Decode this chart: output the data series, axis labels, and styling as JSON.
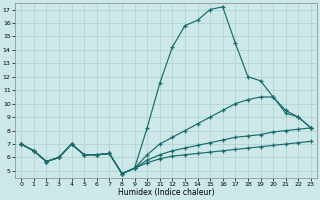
{
  "title": "",
  "xlabel": "Humidex (Indice chaleur)",
  "bg_color": "#cce8e8",
  "grid_color": "#aacfcf",
  "line_color": "#1a6b6b",
  "xlim": [
    -0.5,
    23.5
  ],
  "ylim": [
    4.5,
    17.5
  ],
  "xticks": [
    0,
    1,
    2,
    3,
    4,
    5,
    6,
    7,
    8,
    9,
    10,
    11,
    12,
    13,
    14,
    15,
    16,
    17,
    18,
    19,
    20,
    21,
    22,
    23
  ],
  "yticks": [
    5,
    6,
    7,
    8,
    9,
    10,
    11,
    12,
    13,
    14,
    15,
    16,
    17
  ],
  "s1_x": [
    0,
    1,
    2,
    3,
    4,
    5,
    6,
    7,
    8,
    9,
    10,
    11,
    12,
    13,
    14,
    15,
    16,
    17,
    18,
    19,
    20,
    21,
    22,
    23
  ],
  "s1_y": [
    7.0,
    6.5,
    5.7,
    6.0,
    7.0,
    6.2,
    6.2,
    6.3,
    4.8,
    5.2,
    8.2,
    11.5,
    14.2,
    15.8,
    16.2,
    17.0,
    17.2,
    14.5,
    12.0,
    11.7,
    10.5,
    9.3,
    9.0,
    8.2
  ],
  "s2_x": [
    0,
    1,
    2,
    3,
    4,
    5,
    6,
    7,
    8,
    9,
    10,
    11,
    12,
    13,
    14,
    15,
    16,
    17,
    18,
    19,
    20,
    21,
    22,
    23
  ],
  "s2_y": [
    7.0,
    6.5,
    5.7,
    6.0,
    7.0,
    6.2,
    6.2,
    6.3,
    4.8,
    5.2,
    5.8,
    6.2,
    6.5,
    6.7,
    6.9,
    7.1,
    7.3,
    7.5,
    7.6,
    7.7,
    7.9,
    8.0,
    8.1,
    8.2
  ],
  "s3_x": [
    0,
    1,
    2,
    3,
    4,
    5,
    6,
    7,
    8,
    9,
    10,
    11,
    12,
    13,
    14,
    15,
    16,
    17,
    18,
    19,
    20,
    21,
    22,
    23
  ],
  "s3_y": [
    7.0,
    6.5,
    5.7,
    6.0,
    7.0,
    6.2,
    6.2,
    6.3,
    4.8,
    5.2,
    6.2,
    7.0,
    7.5,
    8.0,
    8.5,
    9.0,
    9.5,
    10.0,
    10.3,
    10.5,
    10.5,
    9.5,
    9.0,
    8.2
  ],
  "s4_x": [
    0,
    1,
    2,
    3,
    4,
    5,
    6,
    7,
    8,
    9,
    10,
    11,
    12,
    13,
    14,
    15,
    16,
    17,
    18,
    19,
    20,
    21,
    22,
    23
  ],
  "s4_y": [
    7.0,
    6.5,
    5.7,
    6.0,
    7.0,
    6.2,
    6.2,
    6.3,
    4.8,
    5.2,
    5.6,
    5.9,
    6.1,
    6.2,
    6.3,
    6.4,
    6.5,
    6.6,
    6.7,
    6.8,
    6.9,
    7.0,
    7.1,
    7.2
  ]
}
